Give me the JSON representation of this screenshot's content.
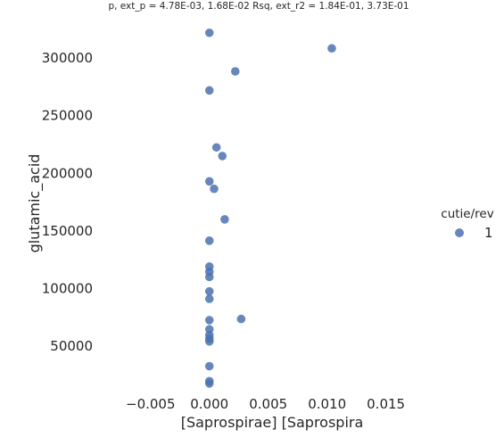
{
  "chart_data": {
    "type": "scatter",
    "title": "p, ext_p = 4.78E-03, 1.68E-02 Rsq, ext_r2 = 1.84E-01, 3.73E-01",
    "xlabel": "[Saprospirae] [Saprospira",
    "ylabel": "glutamic_acid",
    "xlim": [
      -0.009,
      0.0195
    ],
    "ylim": [
      12000,
      335000
    ],
    "x_ticks": [
      -0.005,
      0.0,
      0.005,
      0.01,
      0.015
    ],
    "x_tick_labels": [
      "−0.005",
      "0.000",
      "0.005",
      "0.010",
      "0.015"
    ],
    "y_ticks": [
      50000,
      100000,
      150000,
      200000,
      250000,
      300000
    ],
    "y_tick_labels": [
      "50000",
      "100000",
      "150000",
      "200000",
      "250000",
      "300000"
    ],
    "grid": false,
    "legend": {
      "title": "cutie/rev",
      "placement": "right",
      "entries": [
        "1"
      ]
    },
    "series": [
      {
        "name": "1",
        "color": "#4c72b0",
        "points": [
          [
            0.0,
            322000
          ],
          [
            0.0104,
            308500
          ],
          [
            0.0022,
            288500
          ],
          [
            0.0,
            272000
          ],
          [
            0.0006,
            222500
          ],
          [
            0.0011,
            215000
          ],
          [
            0.0,
            193000
          ],
          [
            0.0004,
            186500
          ],
          [
            0.0013,
            160000
          ],
          [
            0.0,
            141500
          ],
          [
            0.0,
            119000
          ],
          [
            0.0,
            114500
          ],
          [
            0.0,
            110000
          ],
          [
            0.0,
            97500
          ],
          [
            0.0,
            91000
          ],
          [
            0.0027,
            73500
          ],
          [
            0.0,
            72500
          ],
          [
            0.0,
            64500
          ],
          [
            0.0,
            59500
          ],
          [
            0.0,
            56500
          ],
          [
            0.0,
            54000
          ],
          [
            0.0,
            32500
          ],
          [
            0.0,
            19500
          ],
          [
            0.0,
            17500
          ]
        ]
      }
    ]
  }
}
